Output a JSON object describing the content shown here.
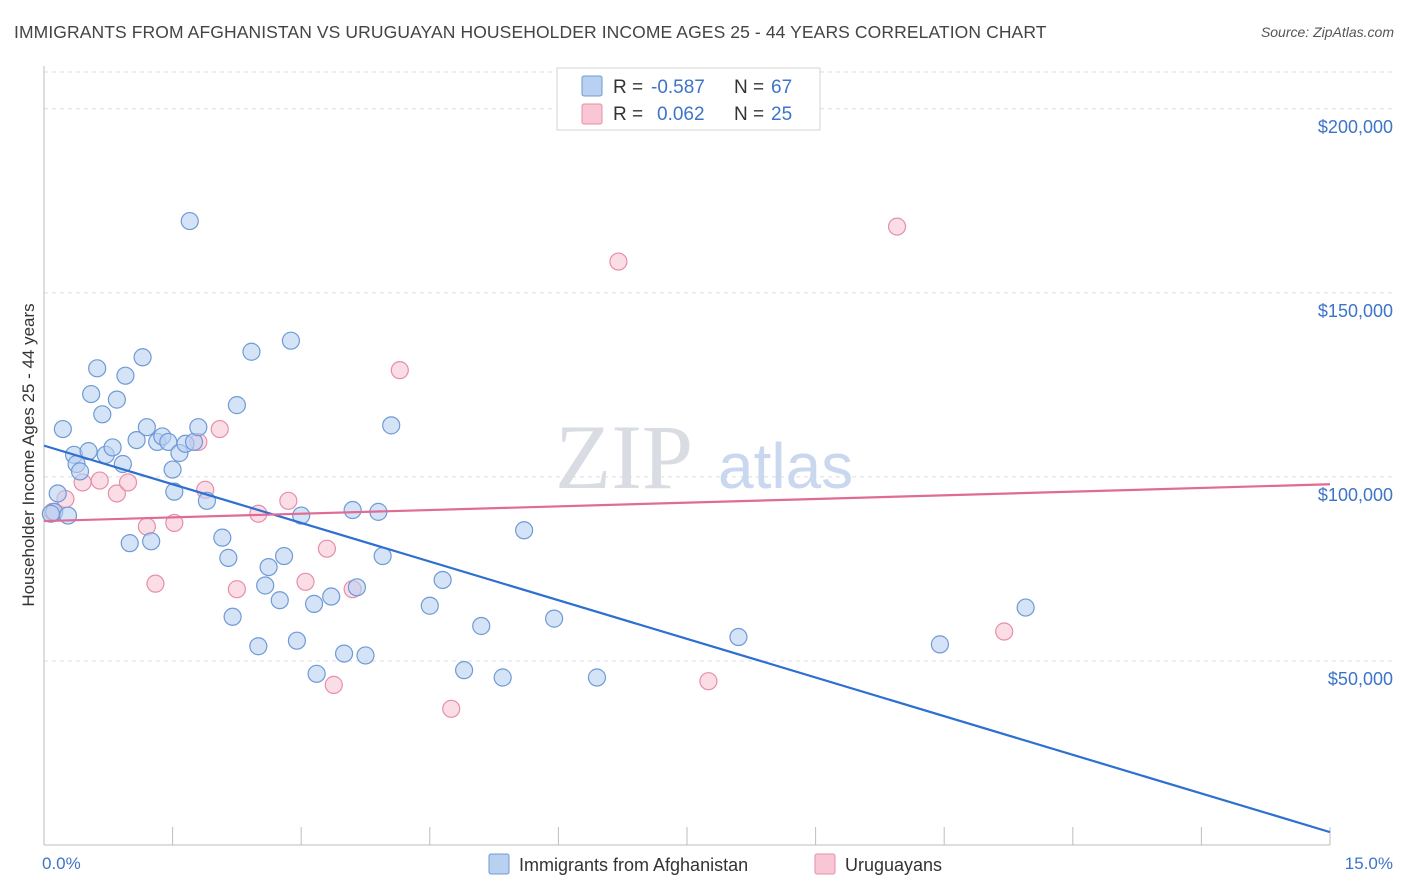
{
  "header": {
    "title": "IMMIGRANTS FROM AFGHANISTAN VS URUGUAYAN HOUSEHOLDER INCOME AGES 25 - 44 YEARS CORRELATION CHART",
    "source": "Source: ZipAtlas.com"
  },
  "watermark": {
    "zip": "ZIP",
    "atlas": "atlas"
  },
  "colors": {
    "blue_fill": "#b9d0f1",
    "blue_stroke": "#6f9ad6",
    "blue_line": "#2e6fd0",
    "pink_fill": "#f8c6d5",
    "pink_stroke": "#e68fab",
    "pink_line": "#e06b95",
    "grid": "#dcdcdc",
    "tick_text": "#3d74c9"
  },
  "legend": {
    "rows": [
      {
        "r_label": "R =",
        "r_value": "-0.587",
        "n_label": "N =",
        "n_value": "67"
      },
      {
        "r_label": "R =",
        "r_value": "0.062",
        "n_label": "N =",
        "n_value": "25"
      }
    ]
  },
  "bottom_legend": {
    "items": [
      "Immigrants from Afghanistan",
      "Uruguayans"
    ]
  },
  "chart_data": {
    "type": "scatter",
    "title": "IMMIGRANTS FROM AFGHANISTAN VS URUGUAYAN HOUSEHOLDER INCOME AGES 25 - 44 YEARS CORRELATION CHART",
    "xlabel": "",
    "ylabel": "Householder Income Ages 25 - 44 years",
    "xlim": [
      0,
      15
    ],
    "ylim": [
      0,
      210000
    ],
    "x_tick_labels": {
      "min": "0.0%",
      "max": "15.0%"
    },
    "y_ticks": [
      {
        "value": 50000,
        "label": "$50,000"
      },
      {
        "value": 100000,
        "label": "$100,000"
      },
      {
        "value": 150000,
        "label": "$150,000"
      },
      {
        "value": 200000,
        "label": "$200,000"
      }
    ],
    "series": [
      {
        "name": "Immigrants from Afghanistan",
        "R": -0.587,
        "N": 67,
        "trend": [
          [
            0,
            108500
          ],
          [
            15,
            3500
          ]
        ],
        "points": [
          [
            0.12,
            90500
          ],
          [
            0.16,
            95500
          ],
          [
            0.28,
            89500
          ],
          [
            0.22,
            113000
          ],
          [
            0.35,
            106000
          ],
          [
            0.38,
            103500
          ],
          [
            0.42,
            101500
          ],
          [
            0.52,
            107000
          ],
          [
            0.55,
            122500
          ],
          [
            0.62,
            129500
          ],
          [
            0.68,
            117000
          ],
          [
            0.72,
            106000
          ],
          [
            0.8,
            108000
          ],
          [
            0.85,
            121000
          ],
          [
            0.92,
            103500
          ],
          [
            0.95,
            127500
          ],
          [
            1.0,
            82000
          ],
          [
            1.08,
            110000
          ],
          [
            1.15,
            132500
          ],
          [
            1.2,
            113500
          ],
          [
            1.25,
            82500
          ],
          [
            1.32,
            109500
          ],
          [
            1.38,
            111000
          ],
          [
            1.45,
            109500
          ],
          [
            1.5,
            102000
          ],
          [
            1.52,
            96000
          ],
          [
            1.58,
            106500
          ],
          [
            1.65,
            109000
          ],
          [
            1.7,
            169500
          ],
          [
            1.75,
            109500
          ],
          [
            1.8,
            113500
          ],
          [
            1.9,
            93500
          ],
          [
            2.08,
            83500
          ],
          [
            2.15,
            78000
          ],
          [
            2.2,
            62000
          ],
          [
            2.25,
            119500
          ],
          [
            2.42,
            134000
          ],
          [
            2.5,
            54000
          ],
          [
            2.58,
            70500
          ],
          [
            2.62,
            75500
          ],
          [
            2.75,
            66500
          ],
          [
            2.8,
            78500
          ],
          [
            2.88,
            137000
          ],
          [
            2.95,
            55500
          ],
          [
            3.0,
            89500
          ],
          [
            3.15,
            65500
          ],
          [
            3.18,
            46500
          ],
          [
            3.35,
            67500
          ],
          [
            3.5,
            52000
          ],
          [
            3.6,
            91000
          ],
          [
            3.65,
            70000
          ],
          [
            3.75,
            51500
          ],
          [
            3.9,
            90500
          ],
          [
            3.95,
            78500
          ],
          [
            4.05,
            114000
          ],
          [
            4.5,
            65000
          ],
          [
            4.65,
            72000
          ],
          [
            4.9,
            47500
          ],
          [
            5.1,
            59500
          ],
          [
            5.35,
            45500
          ],
          [
            5.6,
            85500
          ],
          [
            5.95,
            61500
          ],
          [
            6.45,
            45500
          ],
          [
            8.1,
            56500
          ],
          [
            10.45,
            54500
          ],
          [
            11.45,
            64500
          ],
          [
            0.08,
            90000
          ]
        ]
      },
      {
        "name": "Uruguayans",
        "R": 0.062,
        "N": 25,
        "trend": [
          [
            0,
            88000
          ],
          [
            15,
            98000
          ]
        ],
        "points": [
          [
            0.1,
            90500
          ],
          [
            0.25,
            94000
          ],
          [
            0.45,
            98500
          ],
          [
            0.65,
            99000
          ],
          [
            0.85,
            95500
          ],
          [
            0.98,
            98500
          ],
          [
            1.2,
            86500
          ],
          [
            1.3,
            71000
          ],
          [
            1.52,
            87500
          ],
          [
            1.8,
            109500
          ],
          [
            1.88,
            96500
          ],
          [
            2.05,
            113000
          ],
          [
            2.25,
            69500
          ],
          [
            2.5,
            90000
          ],
          [
            2.85,
            93500
          ],
          [
            3.05,
            71500
          ],
          [
            3.3,
            80500
          ],
          [
            3.38,
            43500
          ],
          [
            3.6,
            69500
          ],
          [
            4.15,
            129000
          ],
          [
            4.75,
            37000
          ],
          [
            6.7,
            158500
          ],
          [
            7.75,
            44500
          ],
          [
            9.95,
            168000
          ],
          [
            11.2,
            58000
          ]
        ]
      }
    ]
  }
}
